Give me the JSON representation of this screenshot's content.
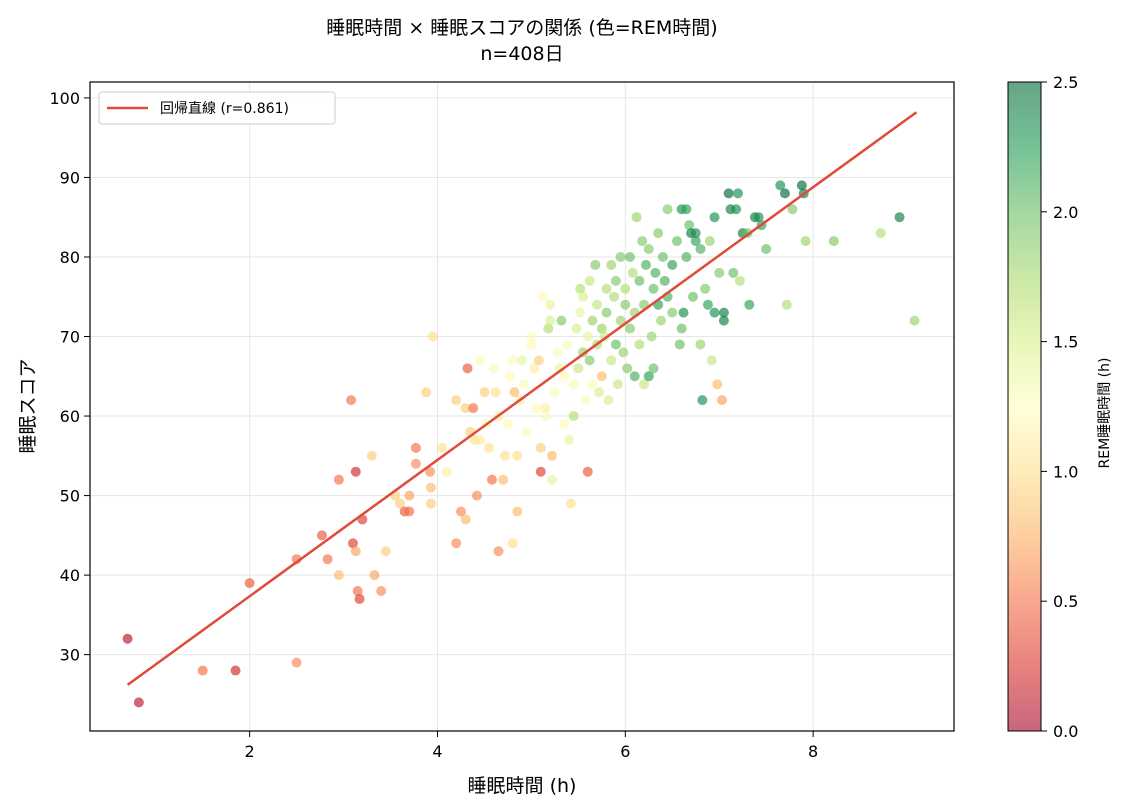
{
  "chart_data": {
    "type": "scatter",
    "title": "睡眠時間 × 睡眠スコアの関係 (色=REM時間)",
    "subtitle": "n=408日",
    "xlabel": "睡眠時間 (h)",
    "ylabel": "睡眠スコア",
    "xlim": [
      0.3,
      9.5
    ],
    "ylim": [
      20.4,
      102
    ],
    "xticks": [
      "2",
      "4",
      "6",
      "8"
    ],
    "yticks": [
      "30",
      "40",
      "50",
      "60",
      "70",
      "80",
      "90",
      "100"
    ],
    "grid": true,
    "legend_position": "top-left",
    "colorbar": {
      "label": "REM睡眠時間 (h)",
      "range": [
        0.0,
        2.5
      ],
      "ticks": [
        "0.0",
        "0.5",
        "1.0",
        "1.5",
        "2.0",
        "2.5"
      ],
      "colormap": "RdYlGn"
    },
    "regression": {
      "label": "回帰直線 (r=0.861)",
      "color": "#e04a3b",
      "x": [
        0.7,
        9.1
      ],
      "y": [
        26.2,
        98.2
      ]
    },
    "series": [
      {
        "points": [
          [
            0.7,
            32,
            0.1
          ],
          [
            0.82,
            24,
            0.1
          ],
          [
            1.5,
            28,
            0.5
          ],
          [
            1.85,
            28,
            0.2
          ],
          [
            2.0,
            39,
            0.4
          ],
          [
            2.5,
            42,
            0.5
          ],
          [
            2.5,
            29,
            0.6
          ],
          [
            2.77,
            45,
            0.4
          ],
          [
            2.83,
            42,
            0.5
          ],
          [
            2.95,
            52,
            0.5
          ],
          [
            2.95,
            40,
            0.8
          ],
          [
            3.08,
            62,
            0.5
          ],
          [
            3.1,
            44,
            0.3
          ],
          [
            3.13,
            53,
            0.2
          ],
          [
            3.13,
            43,
            0.7
          ],
          [
            3.15,
            38,
            0.5
          ],
          [
            3.17,
            37,
            0.3
          ],
          [
            3.2,
            47,
            0.3
          ],
          [
            3.3,
            55,
            0.9
          ],
          [
            3.33,
            40,
            0.7
          ],
          [
            3.4,
            38,
            0.6
          ],
          [
            3.45,
            43,
            0.9
          ],
          [
            3.55,
            50,
            0.9
          ],
          [
            3.6,
            49,
            0.9
          ],
          [
            3.65,
            48,
            0.4
          ],
          [
            3.7,
            48,
            0.5
          ],
          [
            3.7,
            50,
            0.7
          ],
          [
            3.77,
            56,
            0.5
          ],
          [
            3.77,
            54,
            0.6
          ],
          [
            3.88,
            63,
            0.9
          ],
          [
            3.92,
            53,
            0.6
          ],
          [
            3.93,
            51,
            0.8
          ],
          [
            3.93,
            49,
            0.9
          ],
          [
            3.95,
            70,
            1.0
          ],
          [
            4.05,
            56,
            1.0
          ],
          [
            4.1,
            53,
            1.1
          ],
          [
            4.2,
            44,
            0.6
          ],
          [
            4.2,
            62,
            0.9
          ],
          [
            4.25,
            48,
            0.6
          ],
          [
            4.3,
            61,
            0.9
          ],
          [
            4.3,
            47,
            0.8
          ],
          [
            4.32,
            66,
            0.4
          ],
          [
            4.35,
            58,
            0.9
          ],
          [
            4.38,
            61,
            0.5
          ],
          [
            4.4,
            57,
            1.0
          ],
          [
            4.42,
            50,
            0.6
          ],
          [
            4.45,
            67,
            1.3
          ],
          [
            4.45,
            57,
            1.1
          ],
          [
            4.5,
            63,
            0.9
          ],
          [
            4.52,
            59,
            1.2
          ],
          [
            4.55,
            56,
            1.0
          ],
          [
            4.58,
            52,
            0.5
          ],
          [
            4.6,
            66,
            1.3
          ],
          [
            4.62,
            63,
            1.0
          ],
          [
            4.65,
            60,
            1.1
          ],
          [
            4.65,
            43,
            0.6
          ],
          [
            4.7,
            52,
            0.8
          ],
          [
            4.72,
            55,
            1.0
          ],
          [
            4.75,
            59,
            1.2
          ],
          [
            4.77,
            65,
            1.2
          ],
          [
            4.8,
            67,
            1.2
          ],
          [
            4.8,
            44,
            1.0
          ],
          [
            4.82,
            63,
            0.8
          ],
          [
            4.85,
            48,
            0.8
          ],
          [
            4.85,
            55,
            1.0
          ],
          [
            4.88,
            62,
            1.1
          ],
          [
            4.9,
            67,
            1.4
          ],
          [
            4.92,
            64,
            1.3
          ],
          [
            4.95,
            58,
            1.3
          ],
          [
            5.0,
            70,
            1.2
          ],
          [
            5.0,
            69,
            1.3
          ],
          [
            5.03,
            66,
            1.1
          ],
          [
            5.05,
            61,
            1.2
          ],
          [
            5.08,
            67,
            0.9
          ],
          [
            5.1,
            53,
            0.3
          ],
          [
            5.1,
            56,
            0.9
          ],
          [
            5.12,
            75,
            1.2
          ],
          [
            5.15,
            61,
            1.1
          ],
          [
            5.15,
            60,
            1.2
          ],
          [
            5.18,
            71,
            1.7
          ],
          [
            5.2,
            74,
            1.4
          ],
          [
            5.2,
            72,
            1.5
          ],
          [
            5.22,
            55,
            0.8
          ],
          [
            5.22,
            52,
            1.4
          ],
          [
            5.25,
            63,
            1.3
          ],
          [
            5.28,
            68,
            1.2
          ],
          [
            5.3,
            66,
            1.4
          ],
          [
            5.32,
            72,
            1.9
          ],
          [
            5.35,
            65,
            1.2
          ],
          [
            5.35,
            59,
            1.2
          ],
          [
            5.38,
            69,
            1.3
          ],
          [
            5.4,
            57,
            1.4
          ],
          [
            5.42,
            49,
            1.0
          ],
          [
            5.45,
            60,
            1.7
          ],
          [
            5.45,
            64,
            1.3
          ],
          [
            5.48,
            71,
            1.5
          ],
          [
            5.5,
            66,
            1.6
          ],
          [
            5.52,
            73,
            1.4
          ],
          [
            5.52,
            76,
            1.7
          ],
          [
            5.55,
            68,
            1.8
          ],
          [
            5.55,
            75,
            1.5
          ],
          [
            5.58,
            62,
            1.3
          ],
          [
            5.6,
            53,
            0.4
          ],
          [
            5.6,
            70,
            1.4
          ],
          [
            5.62,
            67,
            1.9
          ],
          [
            5.62,
            77,
            1.6
          ],
          [
            5.65,
            64,
            1.3
          ],
          [
            5.65,
            72,
            1.8
          ],
          [
            5.68,
            79,
            1.9
          ],
          [
            5.7,
            69,
            1.7
          ],
          [
            5.7,
            74,
            1.6
          ],
          [
            5.72,
            63,
            1.5
          ],
          [
            5.75,
            65,
            0.8
          ],
          [
            5.75,
            71,
            1.8
          ],
          [
            5.78,
            70,
            1.6
          ],
          [
            5.8,
            73,
            1.9
          ],
          [
            5.8,
            76,
            1.7
          ],
          [
            5.82,
            62,
            1.5
          ],
          [
            5.85,
            67,
            1.6
          ],
          [
            5.85,
            79,
            1.8
          ],
          [
            5.88,
            75,
            1.7
          ],
          [
            5.9,
            69,
            2.0
          ],
          [
            5.9,
            77,
            1.9
          ],
          [
            5.92,
            64,
            1.6
          ],
          [
            5.95,
            72,
            1.8
          ],
          [
            5.95,
            80,
            1.9
          ],
          [
            5.98,
            68,
            1.8
          ],
          [
            6.0,
            74,
            1.9
          ],
          [
            6.0,
            76,
            1.7
          ],
          [
            6.02,
            66,
            1.9
          ],
          [
            6.05,
            80,
            2.0
          ],
          [
            6.05,
            71,
            1.9
          ],
          [
            6.08,
            78,
            1.7
          ],
          [
            6.1,
            65,
            2.1
          ],
          [
            6.1,
            73,
            1.8
          ],
          [
            6.12,
            85,
            1.8
          ],
          [
            6.15,
            69,
            1.7
          ],
          [
            6.15,
            77,
            2.0
          ],
          [
            6.18,
            82,
            1.9
          ],
          [
            6.2,
            64,
            1.6
          ],
          [
            6.2,
            74,
            1.9
          ],
          [
            6.22,
            79,
            2.1
          ],
          [
            6.25,
            65,
            2.2
          ],
          [
            6.25,
            81,
            1.9
          ],
          [
            6.28,
            70,
            1.8
          ],
          [
            6.3,
            76,
            2.0
          ],
          [
            6.3,
            66,
            2.0
          ],
          [
            6.32,
            78,
            2.1
          ],
          [
            6.35,
            83,
            1.9
          ],
          [
            6.35,
            74,
            2.2
          ],
          [
            6.38,
            72,
            1.8
          ],
          [
            6.4,
            80,
            2.0
          ],
          [
            6.42,
            77,
            2.1
          ],
          [
            6.45,
            86,
            1.9
          ],
          [
            6.45,
            75,
            2.1
          ],
          [
            6.5,
            73,
            1.9
          ],
          [
            6.5,
            79,
            2.2
          ],
          [
            6.55,
            82,
            2.0
          ],
          [
            6.58,
            69,
            2.0
          ],
          [
            6.6,
            86,
            2.3
          ],
          [
            6.6,
            71,
            2.0
          ],
          [
            6.62,
            73,
            2.3
          ],
          [
            6.65,
            86,
            2.2
          ],
          [
            6.65,
            80,
            2.1
          ],
          [
            6.68,
            84,
            2.0
          ],
          [
            6.7,
            83,
            2.4
          ],
          [
            6.72,
            75,
            2.0
          ],
          [
            6.75,
            82,
            2.2
          ],
          [
            6.75,
            83,
            2.3
          ],
          [
            6.8,
            81,
            2.1
          ],
          [
            6.8,
            69,
            1.8
          ],
          [
            6.82,
            62,
            2.3
          ],
          [
            6.85,
            76,
            1.9
          ],
          [
            6.88,
            74,
            2.2
          ],
          [
            6.9,
            82,
            1.8
          ],
          [
            6.92,
            67,
            1.6
          ],
          [
            6.95,
            85,
            2.3
          ],
          [
            6.95,
            73,
            2.3
          ],
          [
            6.98,
            64,
            0.8
          ],
          [
            7.0,
            78,
            1.9
          ],
          [
            7.03,
            62,
            0.7
          ],
          [
            7.05,
            73,
            2.4
          ],
          [
            7.05,
            72,
            2.4
          ],
          [
            7.1,
            88,
            2.5
          ],
          [
            7.12,
            86,
            2.4
          ],
          [
            7.15,
            78,
            2.0
          ],
          [
            7.18,
            86,
            2.3
          ],
          [
            7.2,
            88,
            2.3
          ],
          [
            7.22,
            77,
            1.7
          ],
          [
            7.25,
            83,
            2.4
          ],
          [
            7.3,
            83,
            2.0
          ],
          [
            7.32,
            74,
            2.2
          ],
          [
            7.38,
            85,
            2.4
          ],
          [
            7.42,
            85,
            2.3
          ],
          [
            7.45,
            84,
            2.2
          ],
          [
            7.5,
            81,
            2.0
          ],
          [
            7.65,
            89,
            2.3
          ],
          [
            7.7,
            88,
            2.5
          ],
          [
            7.72,
            74,
            1.7
          ],
          [
            7.78,
            86,
            1.9
          ],
          [
            7.88,
            89,
            2.5
          ],
          [
            7.9,
            88,
            2.4
          ],
          [
            7.92,
            82,
            1.8
          ],
          [
            8.22,
            82,
            1.9
          ],
          [
            8.72,
            83,
            1.7
          ],
          [
            8.92,
            85,
            2.4
          ],
          [
            9.08,
            72,
            1.8
          ]
        ]
      }
    ]
  }
}
